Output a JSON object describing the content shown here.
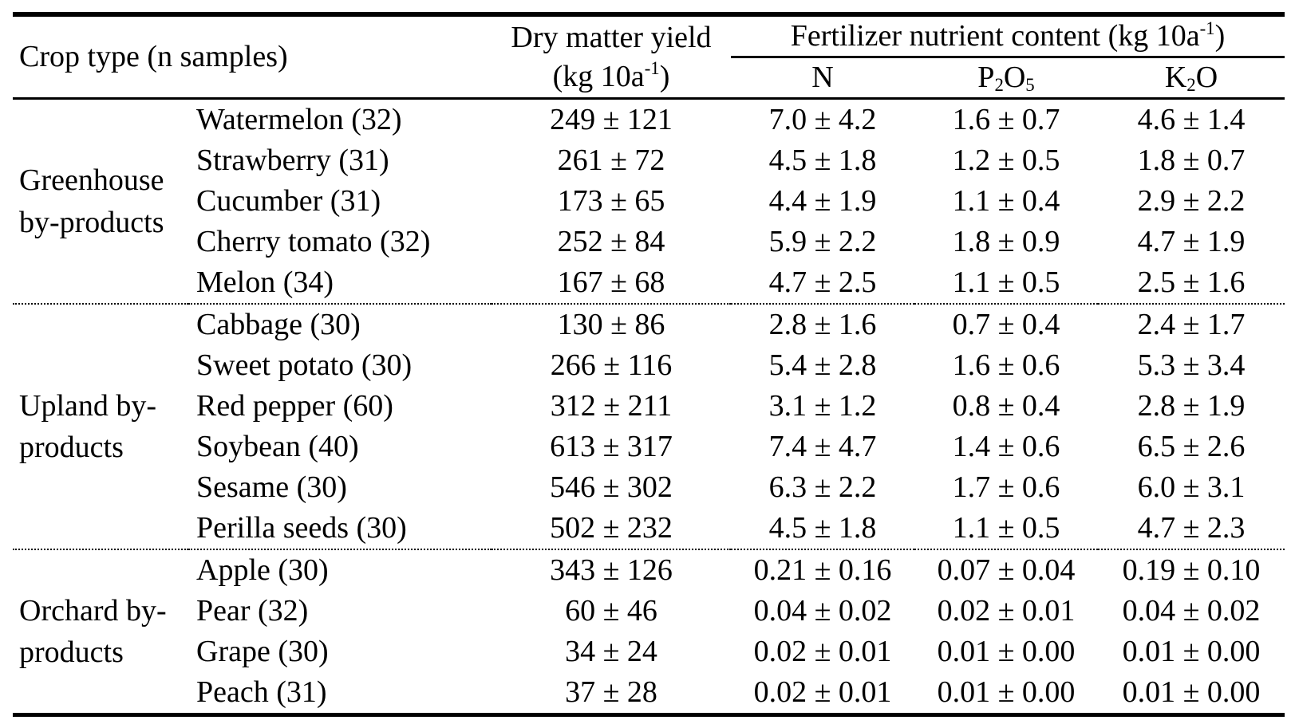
{
  "colors": {
    "background": "#ffffff",
    "text": "#000000",
    "rules": "#000000"
  },
  "table": {
    "header": {
      "crop_type": "Crop type (n samples)",
      "dry_matter_line1": "Dry matter yield",
      "dry_matter_unit_pre": "(kg 10a",
      "dry_matter_unit_sup": "-1",
      "dry_matter_unit_post": ")",
      "fertilizer_pre": "Fertilizer nutrient content (kg 10a",
      "fertilizer_sup": "-1",
      "fertilizer_post": ")",
      "col_n": "N",
      "col_p2o5_p": "P",
      "col_p2o5_sub2": "2",
      "col_p2o5_o": "O",
      "col_p2o5_sub5": "5",
      "col_k2o_k": "K",
      "col_k2o_sub2": "2",
      "col_k2o_o": "O"
    },
    "groups": [
      {
        "label": "Greenhouse by-products",
        "rows": [
          {
            "crop": "Watermelon (32)",
            "dry_matter_yield": "249 ± 121",
            "n": "7.0 ± 4.2",
            "p2o5": "1.6 ± 0.7",
            "k2o": "4.6 ± 1.4"
          },
          {
            "crop": "Strawberry (31)",
            "dry_matter_yield": "261 ± 72",
            "n": "4.5 ± 1.8",
            "p2o5": "1.2 ± 0.5",
            "k2o": "1.8 ± 0.7"
          },
          {
            "crop": "Cucumber (31)",
            "dry_matter_yield": "173 ± 65",
            "n": "4.4 ± 1.9",
            "p2o5": "1.1 ± 0.4",
            "k2o": "2.9 ± 2.2"
          },
          {
            "crop": "Cherry tomato (32)",
            "dry_matter_yield": "252 ± 84",
            "n": "5.9 ± 2.2",
            "p2o5": "1.8 ± 0.9",
            "k2o": "4.7 ± 1.9"
          },
          {
            "crop": "Melon (34)",
            "dry_matter_yield": "167 ± 68",
            "n": "4.7 ± 2.5",
            "p2o5": "1.1 ± 0.5",
            "k2o": "2.5 ± 1.6"
          }
        ]
      },
      {
        "label": "Upland by-products",
        "rows": [
          {
            "crop": "Cabbage (30)",
            "dry_matter_yield": "130 ± 86",
            "n": "2.8 ± 1.6",
            "p2o5": "0.7 ± 0.4",
            "k2o": "2.4 ± 1.7"
          },
          {
            "crop": "Sweet potato (30)",
            "dry_matter_yield": "266 ± 116",
            "n": "5.4 ± 2.8",
            "p2o5": "1.6 ± 0.6",
            "k2o": "5.3 ± 3.4"
          },
          {
            "crop": "Red pepper (60)",
            "dry_matter_yield": "312 ± 211",
            "n": "3.1 ± 1.2",
            "p2o5": "0.8 ± 0.4",
            "k2o": "2.8 ± 1.9"
          },
          {
            "crop": "Soybean (40)",
            "dry_matter_yield": "613 ± 317",
            "n": "7.4 ± 4.7",
            "p2o5": "1.4 ± 0.6",
            "k2o": "6.5 ± 2.6"
          },
          {
            "crop": "Sesame (30)",
            "dry_matter_yield": "546 ± 302",
            "n": "6.3 ± 2.2",
            "p2o5": "1.7 ± 0.6",
            "k2o": "6.0 ± 3.1"
          },
          {
            "crop": "Perilla seeds (30)",
            "dry_matter_yield": "502 ± 232",
            "n": "4.5 ± 1.8",
            "p2o5": "1.1 ± 0.5",
            "k2o": "4.7 ± 2.3"
          }
        ]
      },
      {
        "label": "Orchard by-products",
        "rows": [
          {
            "crop": "Apple (30)",
            "dry_matter_yield": "343 ± 126",
            "n": "0.21 ± 0.16",
            "p2o5": "0.07 ± 0.04",
            "k2o": "0.19 ± 0.10"
          },
          {
            "crop": "Pear (32)",
            "dry_matter_yield": "60 ± 46",
            "n": "0.04 ± 0.02",
            "p2o5": "0.02 ± 0.01",
            "k2o": "0.04 ± 0.02"
          },
          {
            "crop": "Grape (30)",
            "dry_matter_yield": "34 ± 24",
            "n": "0.02 ± 0.01",
            "p2o5": "0.01 ± 0.00",
            "k2o": "0.01 ± 0.00"
          },
          {
            "crop": "Peach (31)",
            "dry_matter_yield": "37 ± 28",
            "n": "0.02 ± 0.01",
            "p2o5": "0.01 ± 0.00",
            "k2o": "0.01 ± 0.00"
          }
        ]
      }
    ]
  }
}
